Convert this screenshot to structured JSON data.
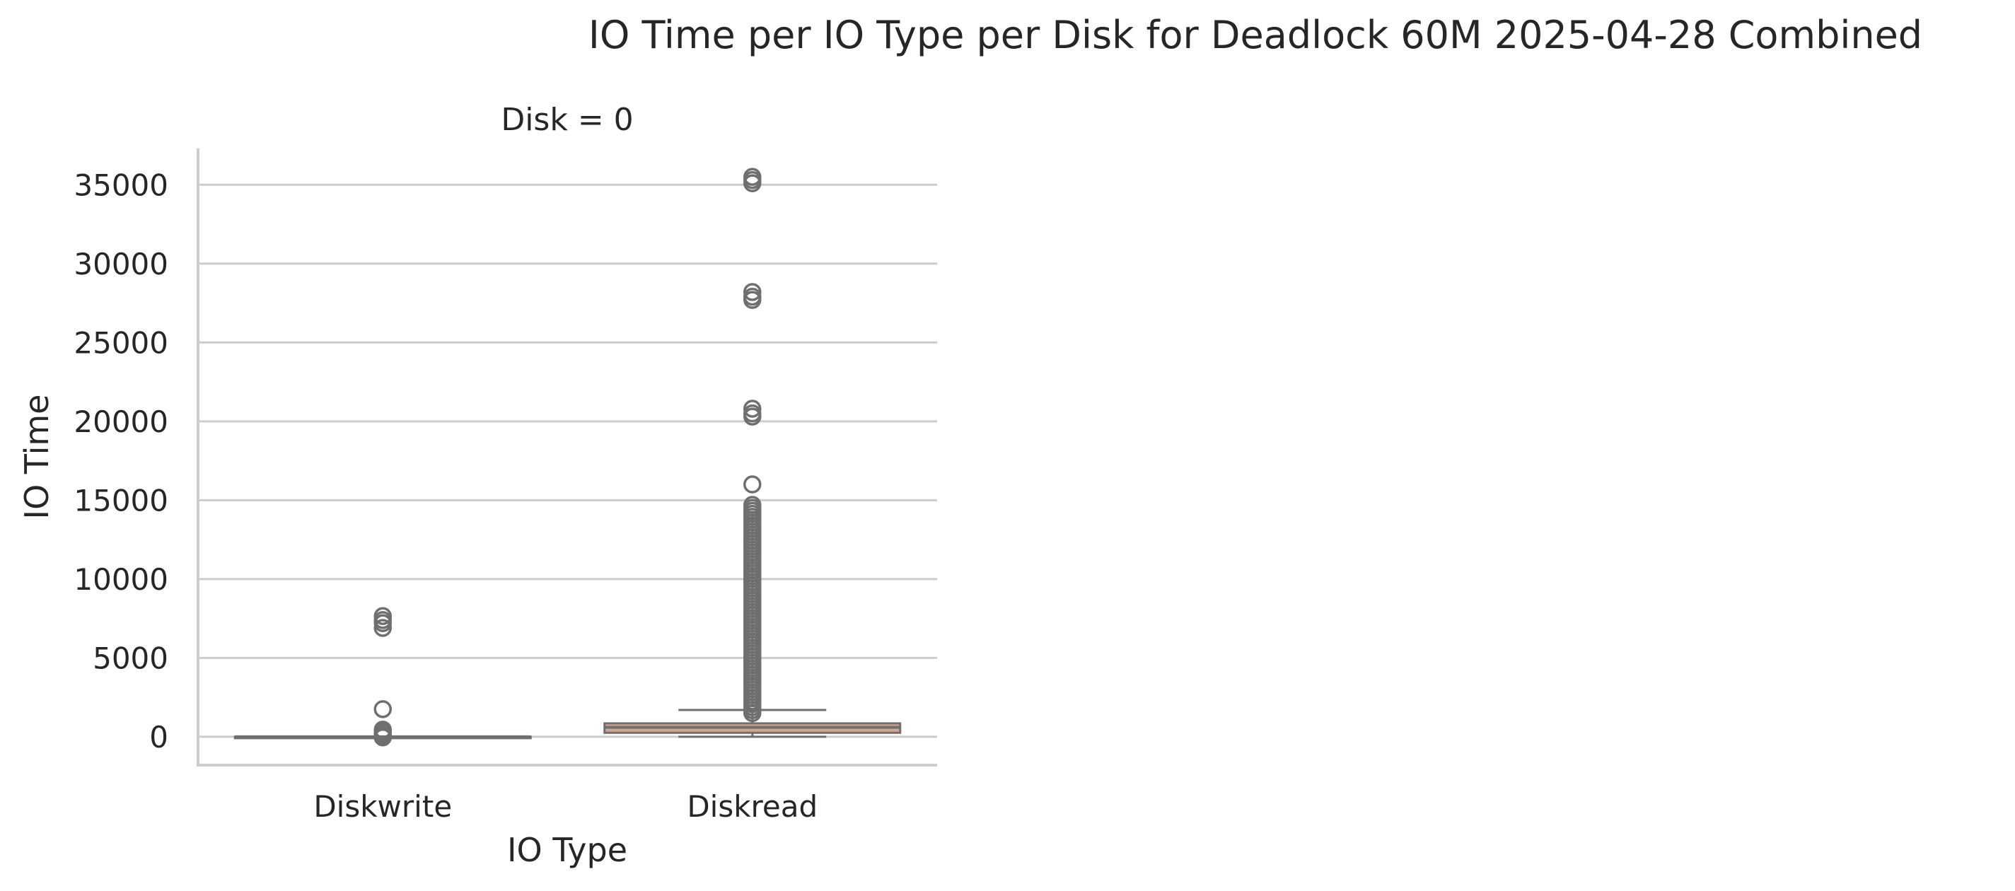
{
  "chart_data": {
    "type": "box",
    "title": "IO Time per IO Type per Disk for Deadlock 60M 2025-04-28 Combined",
    "facet_title": "Disk = 0",
    "xlabel": "IO Type",
    "ylabel": "IO Time",
    "categories": [
      "Diskwrite",
      "Diskread"
    ],
    "ylim": [
      -1800,
      37300
    ],
    "yticks": [
      0,
      5000,
      10000,
      15000,
      20000,
      25000,
      30000,
      35000
    ],
    "grid": "horizontal",
    "boxes": [
      {
        "category": "Diskwrite",
        "color": "#8ea5c8",
        "q1": 0,
        "median": 0,
        "q3": 0,
        "whisker_low": 0,
        "whisker_high": 0,
        "outliers": [
          -40,
          60,
          150,
          300,
          450,
          1750,
          6900,
          7200,
          7400,
          7650
        ]
      },
      {
        "category": "Diskread",
        "color": "#d3a58f",
        "q1": 250,
        "median": 600,
        "q3": 850,
        "whisker_low": 0,
        "whisker_high": 1700,
        "outliers": [
          16000,
          20300,
          20500,
          20800,
          27700,
          27900,
          28200,
          35100,
          35300,
          35500
        ],
        "outlier_band": [
          1500,
          14700
        ]
      }
    ]
  }
}
